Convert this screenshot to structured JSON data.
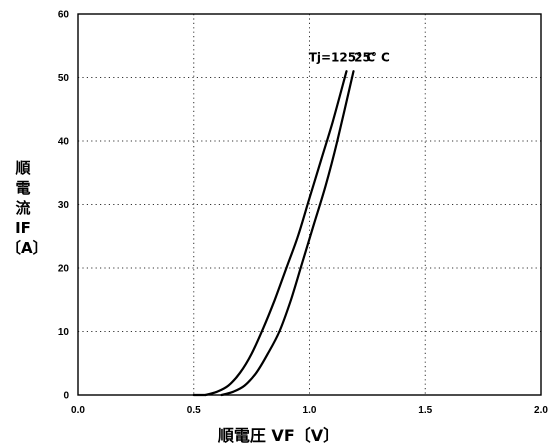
{
  "chart_data": {
    "type": "line",
    "title": "",
    "xlabel": "順電圧 VF〔V〕",
    "ylabel_lines": [
      "順",
      "電",
      "流",
      "IF",
      "〔A〕"
    ],
    "xlim": [
      0,
      2.0
    ],
    "ylim": [
      0,
      60
    ],
    "x_ticks": [
      "0.0",
      "0.5",
      "1.0",
      "1.5",
      "2.0"
    ],
    "x_tick_values": [
      0,
      0.5,
      1.0,
      1.5,
      2.0
    ],
    "y_ticks": [
      "0",
      "10",
      "20",
      "30",
      "40",
      "50",
      "60"
    ],
    "y_tick_values": [
      0,
      10,
      20,
      30,
      40,
      50,
      60
    ],
    "grid": true,
    "legend": "none",
    "series": [
      {
        "name": "Tj=125° C",
        "x": [
          0.55,
          0.6,
          0.65,
          0.7,
          0.75,
          0.8,
          0.85,
          0.9,
          0.95,
          1.0,
          1.05,
          1.1,
          1.16
        ],
        "y": [
          0,
          0.5,
          1.5,
          3.5,
          6.5,
          10.5,
          15,
          20,
          25,
          31,
          37,
          43,
          51
        ]
      },
      {
        "name": "25° C",
        "x": [
          0.62,
          0.67,
          0.72,
          0.77,
          0.82,
          0.87,
          0.92,
          0.97,
          1.02,
          1.07,
          1.12,
          1.19
        ],
        "y": [
          0,
          0.5,
          1.5,
          3.5,
          6.5,
          10,
          15,
          21,
          27,
          33,
          40,
          51
        ]
      }
    ],
    "annotations": [
      {
        "text": "Tj=125° C",
        "x": 1.14,
        "y": 52.5
      },
      {
        "text": "25° C",
        "x": 1.27,
        "y": 52.5
      }
    ]
  }
}
